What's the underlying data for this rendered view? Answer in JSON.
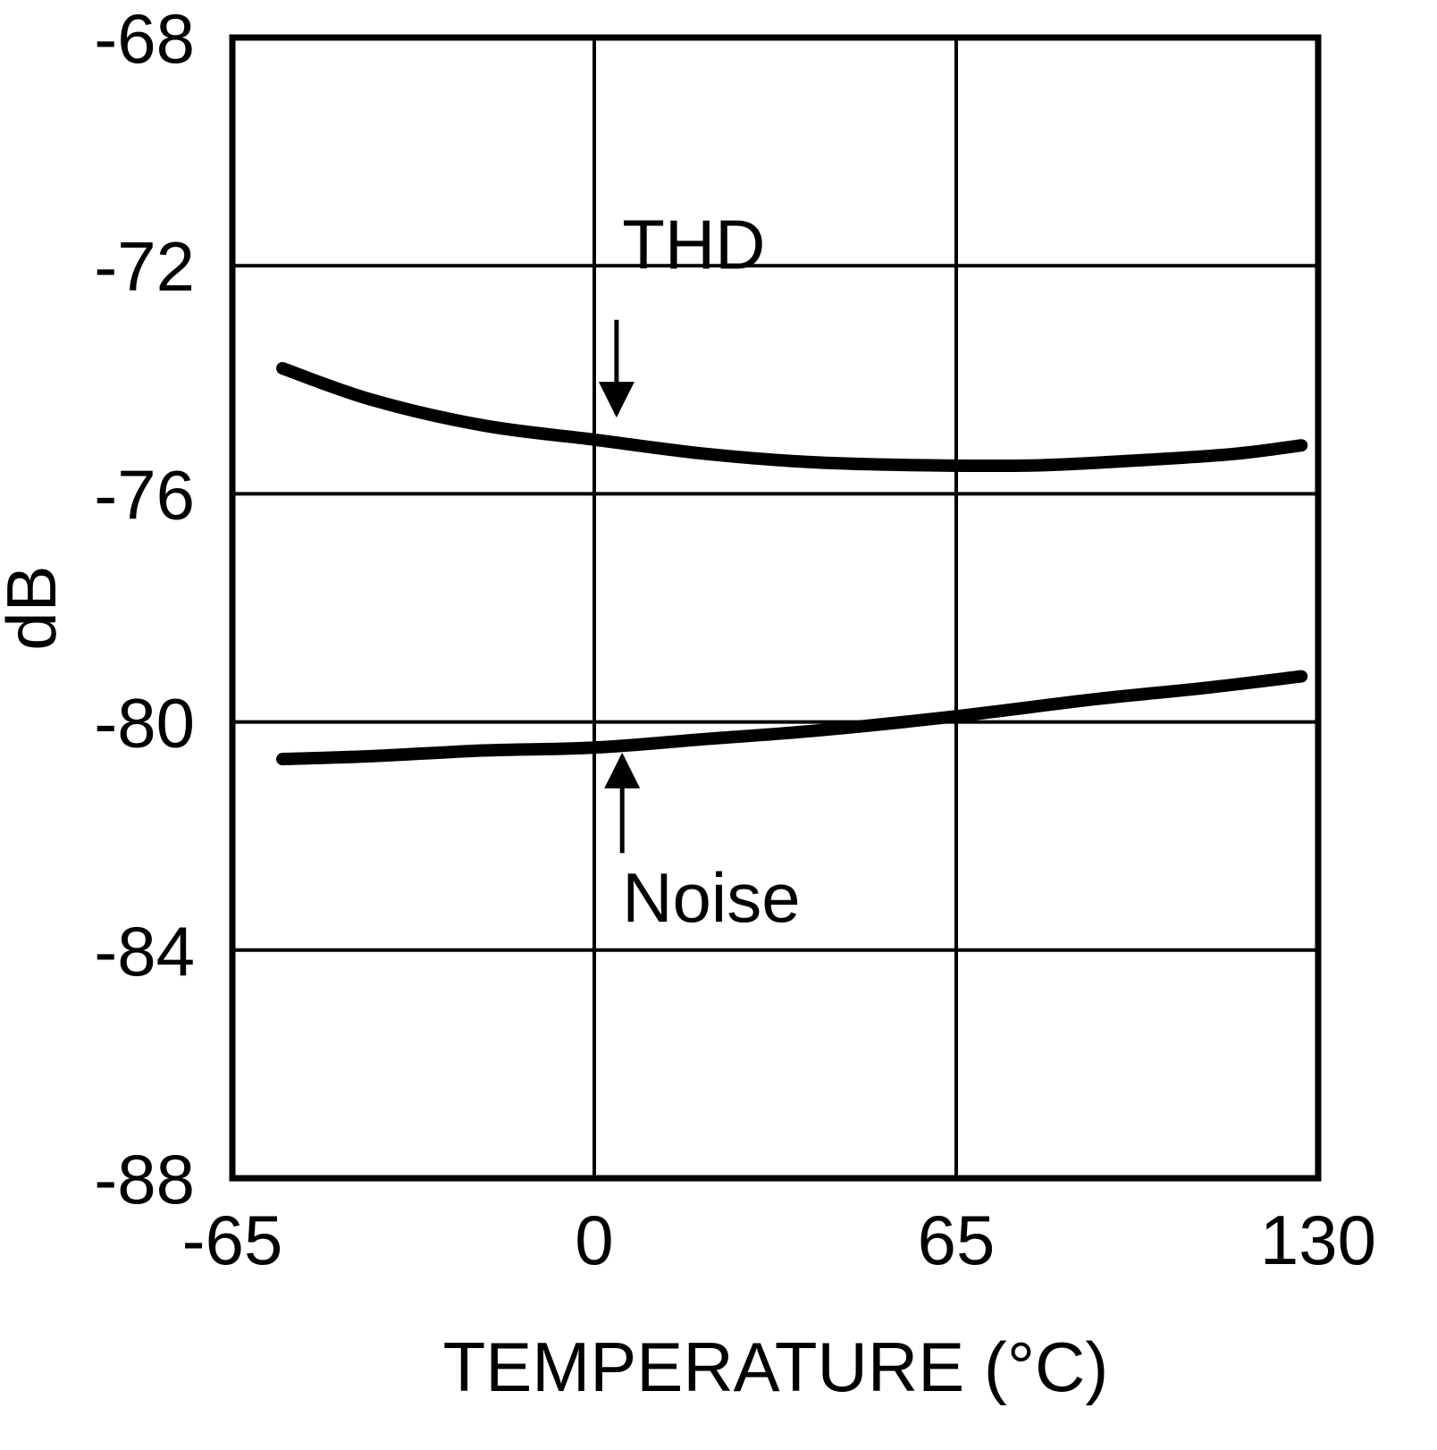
{
  "page": {
    "background": "#ffffff",
    "foreground": "#000000"
  },
  "chart_data": {
    "type": "line",
    "title": "",
    "xlabel": "TEMPERATURE (°C)",
    "ylabel": "dB",
    "xlim": [
      -65,
      130
    ],
    "ylim": [
      -88,
      -68
    ],
    "grid": true,
    "legend": "none",
    "line_color": "#000000",
    "x_tick_values": [
      -65,
      0,
      65,
      130
    ],
    "x_tick_labels": [
      "-65",
      "0",
      "65",
      "130"
    ],
    "y_tick_values": [
      -68,
      -72,
      -76,
      -80,
      -84,
      -88
    ],
    "y_tick_labels": [
      "-68",
      "-72",
      "-76",
      "-80",
      "-84",
      "-88"
    ],
    "series": [
      {
        "name": "THD",
        "x": [
          -56,
          -40,
          -20,
          0,
          20,
          40,
          60,
          80,
          100,
          115,
          127
        ],
        "values": [
          -73.8,
          -74.35,
          -74.8,
          -75.05,
          -75.3,
          -75.45,
          -75.5,
          -75.5,
          -75.4,
          -75.3,
          -75.15
        ]
      },
      {
        "name": "Noise",
        "x": [
          -56,
          -40,
          -20,
          0,
          20,
          40,
          65,
          90,
          110,
          127
        ],
        "values": [
          -80.65,
          -80.6,
          -80.5,
          -80.45,
          -80.3,
          -80.15,
          -79.9,
          -79.6,
          -79.4,
          -79.2
        ]
      }
    ],
    "annotations": [
      {
        "text": "THD",
        "text_x": 5,
        "text_y": -72.05,
        "arrow_x": 4,
        "arrow_from_y": -72.95,
        "arrow_to_y": -74.6,
        "direction": "down"
      },
      {
        "text": "Noise",
        "text_x": 5,
        "text_y": -83.5,
        "arrow_x": 5,
        "arrow_from_y": -82.3,
        "arrow_to_y": -80.6,
        "direction": "up"
      }
    ]
  }
}
